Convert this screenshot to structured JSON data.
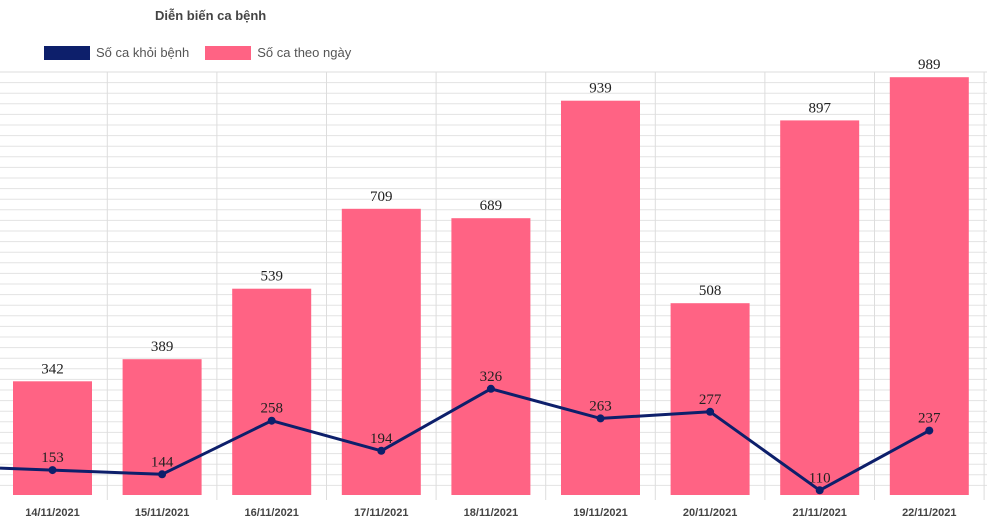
{
  "chart_data": {
    "type": "bar",
    "title": "Diễn biến ca bệnh",
    "categories": [
      "14/11/2021",
      "15/11/2021",
      "16/11/2021",
      "17/11/2021",
      "18/11/2021",
      "19/11/2021",
      "20/11/2021",
      "21/11/2021",
      "22/11/2021"
    ],
    "series": [
      {
        "name": "Số ca khỏi bệnh",
        "type": "line",
        "color": "#0d1f6b",
        "values": [
          153,
          144,
          258,
          194,
          326,
          263,
          277,
          110,
          237
        ]
      },
      {
        "name": "Số ca theo ngày",
        "type": "bar",
        "color": "#ff6384",
        "values": [
          342,
          389,
          539,
          709,
          689,
          939,
          508,
          897,
          989
        ]
      }
    ],
    "ylim": [
      100,
      1000
    ],
    "grid": true,
    "legend_position": "top-left",
    "xlabel": "",
    "ylabel": ""
  }
}
